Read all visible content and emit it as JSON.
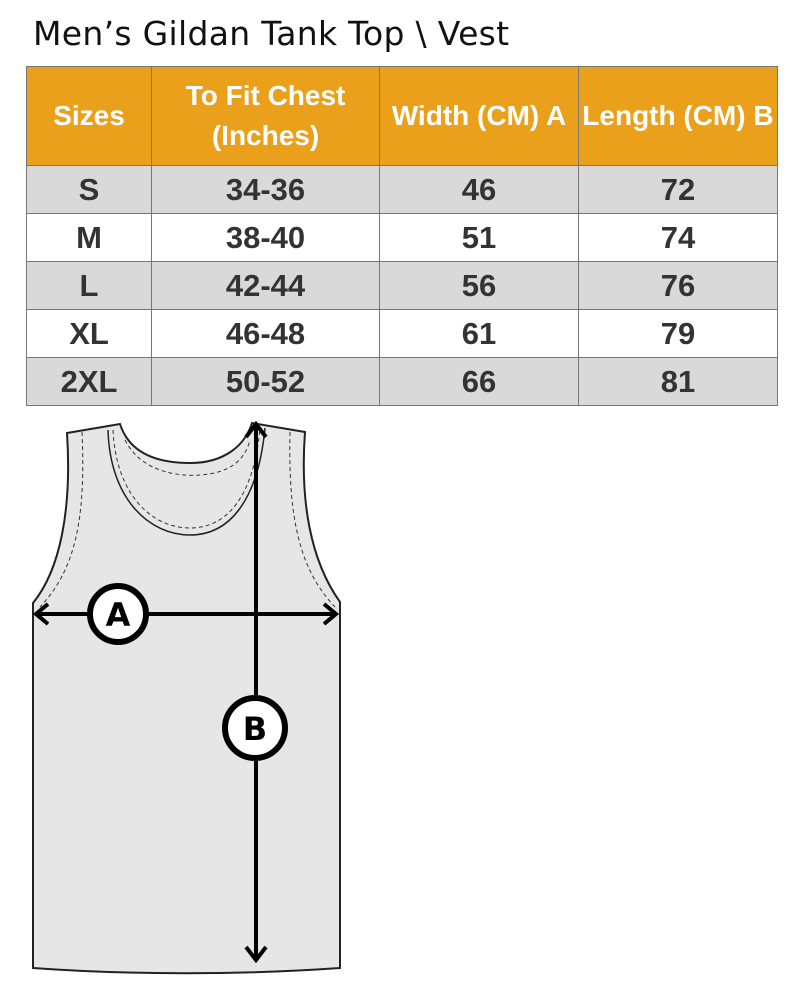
{
  "title": "Men’s Gildan Tank Top \\ Vest",
  "headers": [
    "Sizes",
    "To Fit Chest (Inches)",
    "Width (CM) A",
    "Length  (CM) B"
  ],
  "rows": [
    [
      "S",
      "34-36",
      "46",
      "72"
    ],
    [
      "M",
      "38-40",
      "51",
      "74"
    ],
    [
      "L",
      "42-44",
      "56",
      "76"
    ],
    [
      "XL",
      "46-48",
      "61",
      "79"
    ],
    [
      "2XL",
      "50-52",
      "66",
      "81"
    ]
  ],
  "diagram": {
    "label_a": "A",
    "label_b": "B"
  },
  "colors": {
    "header": "#eba01b",
    "stripe": "#d9d9d9"
  }
}
